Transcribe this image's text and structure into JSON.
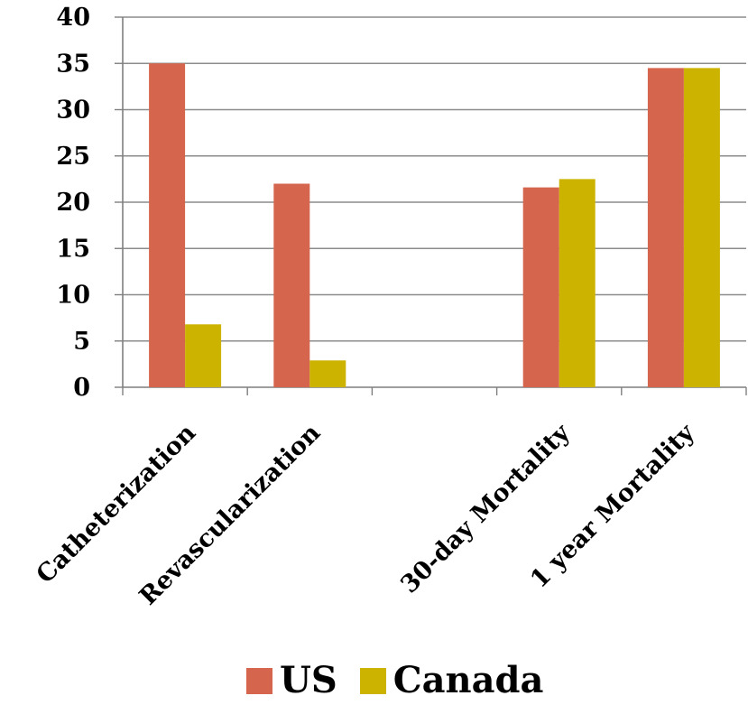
{
  "chart_data": {
    "type": "bar",
    "categories": [
      "Catheterization",
      "Revascularization",
      "",
      "30-day Mortality",
      "1 year Mortality"
    ],
    "series": [
      {
        "name": "US",
        "color": "#d6654d",
        "values": [
          35,
          22,
          null,
          21.6,
          34.5
        ]
      },
      {
        "name": "Canada",
        "color": "#ccb300",
        "values": [
          6.8,
          2.9,
          null,
          22.5,
          34.5
        ]
      }
    ],
    "ylim": [
      0,
      40
    ],
    "yticks": [
      "0",
      "5",
      "10",
      "15",
      "20",
      "25",
      "30",
      "35",
      "40"
    ],
    "grid": true,
    "legend_position": "bottom"
  }
}
